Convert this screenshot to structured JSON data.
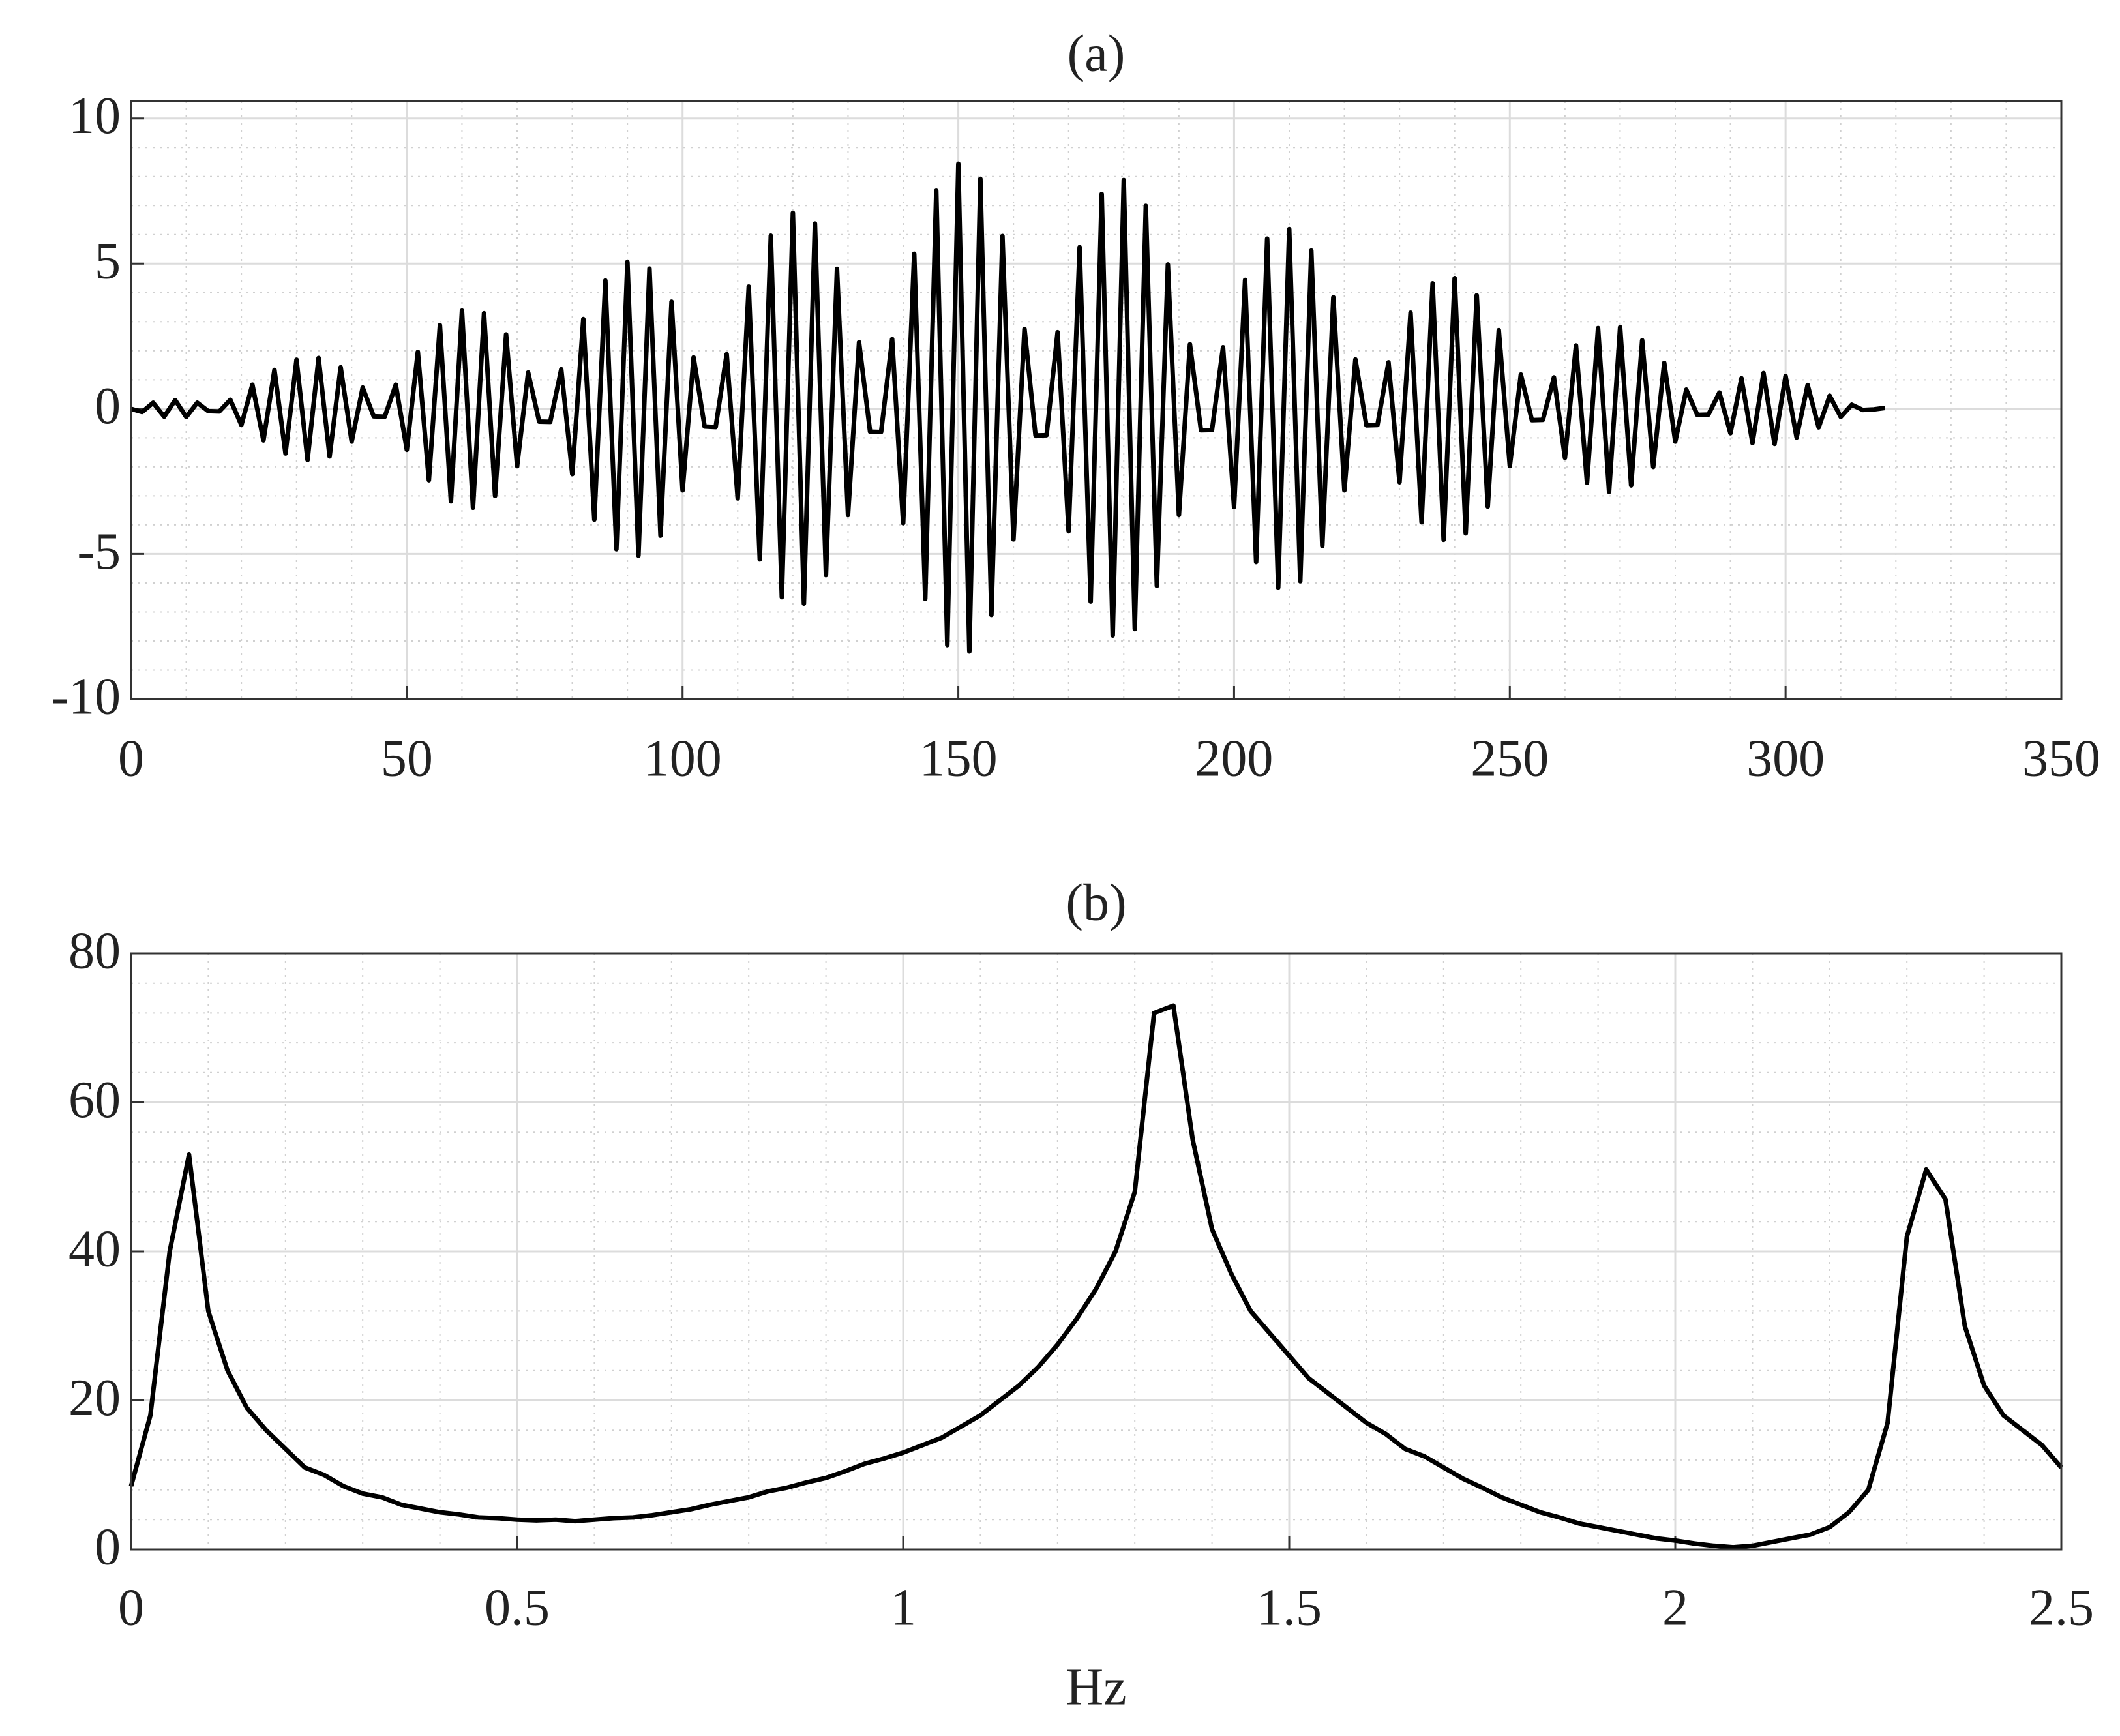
{
  "chart_data": [
    {
      "type": "line",
      "title": "(a)",
      "grid": true,
      "color": "#000000",
      "xlim": [
        0,
        350
      ],
      "xticks": [
        0,
        50,
        100,
        150,
        200,
        250,
        300,
        350
      ],
      "ylim": [
        -10,
        10.6
      ],
      "yticks": [
        -10,
        -5,
        0,
        5,
        10
      ],
      "x": [
        0,
        2,
        4,
        6,
        8,
        10,
        12,
        14,
        16,
        18,
        20,
        22,
        24,
        26,
        28,
        30,
        32,
        34,
        36,
        38,
        40,
        42,
        44,
        46,
        48,
        50,
        52,
        54,
        56,
        58,
        60,
        62,
        64,
        66,
        68,
        70,
        72,
        74,
        76,
        78,
        80,
        82,
        84,
        86,
        88,
        90,
        92,
        94,
        96,
        98,
        100,
        102,
        104,
        106,
        108,
        110,
        112,
        114,
        116,
        118,
        120,
        122,
        124,
        126,
        128,
        130,
        132,
        134,
        136,
        138,
        140,
        142,
        144,
        146,
        148,
        150,
        152,
        154,
        156,
        158,
        160,
        162,
        164,
        166,
        168,
        170,
        172,
        174,
        176,
        178,
        180,
        182,
        184,
        186,
        188,
        190,
        192,
        194,
        196,
        198,
        200,
        202,
        204,
        206,
        208,
        210,
        212,
        214,
        216,
        218,
        220,
        222,
        224,
        226,
        228,
        230,
        232,
        234,
        236,
        238,
        240,
        242,
        244,
        246,
        248,
        250,
        252,
        254,
        256,
        258,
        260,
        262,
        264,
        266,
        268,
        270,
        272,
        274,
        276,
        278,
        280,
        282,
        284,
        286,
        288,
        290,
        292,
        294,
        296,
        298,
        300,
        302,
        304,
        306,
        308,
        310,
        312,
        314,
        316,
        318
      ],
      "series": [
        {
          "color": "#000000",
          "values": [
            0,
            -0.11,
            0.21,
            -0.27,
            0.3,
            -0.28,
            0.21,
            -0.08,
            -0.09,
            0.31,
            -0.56,
            0.83,
            -1.09,
            1.34,
            -1.54,
            1.69,
            -1.76,
            1.75,
            -1.64,
            1.43,
            -1.13,
            0.73,
            -0.26,
            -0.27,
            0.83,
            -1.41,
            1.96,
            -2.46,
            2.88,
            -3.19,
            3.38,
            -3.41,
            3.29,
            -3,
            2.56,
            -1.97,
            1.25,
            -0.44,
            -0.45,
            1.36,
            -2.25,
            3.09,
            -3.82,
            4.42,
            -4.84,
            5.06,
            -5.06,
            4.83,
            -4.37,
            3.69,
            -2.81,
            1.77,
            -0.61,
            -0.63,
            1.88,
            -3.09,
            4.21,
            -5.19,
            5.96,
            -6.49,
            6.75,
            -6.71,
            6.38,
            -5.73,
            4.82,
            -3.66,
            2.29,
            -0.79,
            -0.8,
            2.4,
            -3.94,
            5.34,
            -6.55,
            7.51,
            -8.14,
            8.44,
            -8.36,
            7.92,
            -7.1,
            5.95,
            -4.5,
            2.75,
            -0.92,
            -0.91,
            2.64,
            -4.22,
            5.57,
            -6.64,
            7.4,
            -7.81,
            7.88,
            -7.59,
            6.99,
            -6.1,
            4.97,
            -3.66,
            2.22,
            -0.74,
            -0.73,
            2.12,
            -3.38,
            4.44,
            -5.28,
            5.86,
            -6.16,
            6.19,
            -5.94,
            5.45,
            -4.73,
            3.84,
            -2.81,
            1.7,
            -0.57,
            -0.56,
            1.6,
            -2.53,
            3.31,
            -3.91,
            4.32,
            -4.51,
            4.5,
            -4.29,
            3.91,
            -3.37,
            2.71,
            -1.97,
            1.18,
            -0.39,
            -0.38,
            1.08,
            -1.69,
            2.18,
            -2.55,
            2.78,
            -2.86,
            2.81,
            -2.64,
            2.36,
            -2,
            1.58,
            -1.13,
            0.66,
            -0.21,
            -0.2,
            0.56,
            -0.84,
            1.05,
            -1.18,
            1.23,
            -1.21,
            1.13,
            -0.99,
            0.82,
            -0.64,
            0.45,
            -0.28,
            0.14,
            -0.04,
            -0.02,
            0.03
          ]
        }
      ]
    },
    {
      "type": "line",
      "title": "(b)",
      "xlabel": "Hz",
      "grid": true,
      "color": "#000000",
      "xlim": [
        0,
        2.5
      ],
      "xticks": [
        0,
        0.5,
        1,
        1.5,
        2,
        2.5
      ],
      "ylim": [
        0,
        80
      ],
      "yticks": [
        0,
        20,
        40,
        60,
        80
      ],
      "x": [
        0,
        0.025,
        0.05,
        0.075,
        0.1,
        0.125,
        0.15,
        0.175,
        0.2,
        0.225,
        0.25,
        0.275,
        0.3,
        0.325,
        0.35,
        0.375,
        0.4,
        0.425,
        0.45,
        0.475,
        0.5,
        0.525,
        0.55,
        0.575,
        0.6,
        0.625,
        0.65,
        0.675,
        0.7,
        0.725,
        0.75,
        0.775,
        0.8,
        0.825,
        0.85,
        0.875,
        0.9,
        0.925,
        0.95,
        0.975,
        1,
        1.025,
        1.05,
        1.075,
        1.1,
        1.125,
        1.15,
        1.175,
        1.2,
        1.225,
        1.25,
        1.275,
        1.3,
        1.325,
        1.35,
        1.375,
        1.4,
        1.425,
        1.45,
        1.475,
        1.5,
        1.525,
        1.55,
        1.575,
        1.6,
        1.625,
        1.65,
        1.675,
        1.7,
        1.725,
        1.75,
        1.775,
        1.8,
        1.825,
        1.85,
        1.875,
        1.9,
        1.925,
        1.95,
        1.975,
        2,
        2.025,
        2.05,
        2.075,
        2.1,
        2.125,
        2.15,
        2.175,
        2.2,
        2.225,
        2.25,
        2.275,
        2.3,
        2.325,
        2.35,
        2.375,
        2.4,
        2.425,
        2.45,
        2.475,
        2.5
      ],
      "series": [
        {
          "color": "#000000",
          "values": [
            8.5,
            18,
            40,
            53,
            32,
            24,
            19,
            16,
            13.5,
            11,
            10,
            8.5,
            7.5,
            7,
            6,
            5.5,
            5,
            4.7,
            4.3,
            4.2,
            4,
            3.9,
            4,
            3.8,
            4,
            4.2,
            4.3,
            4.6,
            5,
            5.4,
            6,
            6.5,
            7,
            7.8,
            8.3,
            9,
            9.6,
            10.5,
            11.5,
            12.2,
            13,
            14,
            15,
            16.5,
            18,
            20,
            22,
            24.5,
            27.5,
            31,
            35,
            40,
            48,
            72,
            73,
            55,
            43,
            37,
            32,
            29,
            26,
            23,
            21,
            19,
            17,
            15.5,
            13.5,
            12.5,
            11,
            9.5,
            8.3,
            7,
            6,
            5,
            4.3,
            3.5,
            3,
            2.5,
            2,
            1.5,
            1.2,
            0.8,
            0.5,
            0.3,
            0.5,
            1,
            1.5,
            2,
            3,
            5,
            8,
            17,
            42,
            51,
            47,
            30,
            22,
            18,
            16,
            14,
            11
          ]
        }
      ]
    }
  ]
}
